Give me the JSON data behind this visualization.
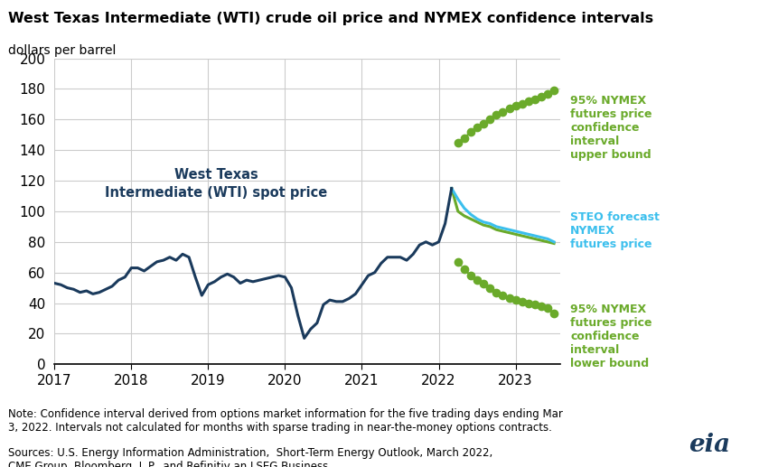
{
  "title": "West Texas Intermediate (WTI) crude oil price and NYMEX confidence intervals",
  "subtitle": "dollars per barrel",
  "note": "Note: Confidence interval derived from options market information for the five trading days ending Mar\n3, 2022. Intervals not calculated for months with sparse trading in near-the-money options contracts.",
  "sources": "Sources: U.S. Energy Information Administration,  Short-Term Energy Outlook, March 2022,\nCME Group, Bloomberg, L.P., and Refinitiv an LSEG Business",
  "wti_color": "#1a3a5c",
  "steo_color": "#3bbfed",
  "ci_color": "#6aaa2a",
  "ylim": [
    0,
    200
  ],
  "yticks": [
    0,
    20,
    40,
    60,
    80,
    100,
    120,
    140,
    160,
    180,
    200
  ],
  "wti_label": "West Texas\nIntermediate (WTI) spot price",
  "upper_label": "95% NYMEX\nfutures price\nconfidence\ninterval\nupper bound",
  "steo_label": "STEO forecast\nNYMEX\nfutures price",
  "lower_label": "95% NYMEX\nfutures price\nconfidence\ninterval\nlower bound",
  "wti_x": [
    2017.0,
    2017.083,
    2017.167,
    2017.25,
    2017.333,
    2017.417,
    2017.5,
    2017.583,
    2017.667,
    2017.75,
    2017.833,
    2017.917,
    2018.0,
    2018.083,
    2018.167,
    2018.25,
    2018.333,
    2018.417,
    2018.5,
    2018.583,
    2018.667,
    2018.75,
    2018.833,
    2018.917,
    2019.0,
    2019.083,
    2019.167,
    2019.25,
    2019.333,
    2019.417,
    2019.5,
    2019.583,
    2019.667,
    2019.75,
    2019.833,
    2019.917,
    2020.0,
    2020.083,
    2020.167,
    2020.25,
    2020.333,
    2020.417,
    2020.5,
    2020.583,
    2020.667,
    2020.75,
    2020.833,
    2020.917,
    2021.0,
    2021.083,
    2021.167,
    2021.25,
    2021.333,
    2021.417,
    2021.5,
    2021.583,
    2021.667,
    2021.75,
    2021.833,
    2021.917,
    2022.0,
    2022.083,
    2022.167
  ],
  "wti_y": [
    53,
    52,
    50,
    49,
    47,
    48,
    46,
    47,
    49,
    51,
    55,
    57,
    63,
    63,
    61,
    64,
    67,
    68,
    70,
    68,
    72,
    70,
    57,
    45,
    52,
    54,
    57,
    59,
    57,
    53,
    55,
    54,
    55,
    56,
    57,
    58,
    57,
    50,
    32,
    17,
    23,
    27,
    39,
    42,
    41,
    41,
    43,
    46,
    52,
    58,
    60,
    66,
    70,
    70,
    70,
    68,
    72,
    78,
    80,
    78,
    80,
    92,
    115
  ],
  "steo_x": [
    2022.167,
    2022.25,
    2022.333,
    2022.417,
    2022.5,
    2022.583,
    2022.667,
    2022.75,
    2022.833,
    2022.917,
    2023.0,
    2023.083,
    2023.167,
    2023.25,
    2023.333,
    2023.417,
    2023.5
  ],
  "steo_y": [
    115,
    108,
    102,
    98,
    95,
    93,
    92,
    90,
    89,
    88,
    87,
    86,
    85,
    84,
    83,
    82,
    80
  ],
  "upper_x": [
    2022.25,
    2022.333,
    2022.417,
    2022.5,
    2022.583,
    2022.667,
    2022.75,
    2022.833,
    2022.917,
    2023.0,
    2023.083,
    2023.167,
    2023.25,
    2023.333,
    2023.417,
    2023.5
  ],
  "upper_y": [
    145,
    148,
    152,
    155,
    157,
    160,
    163,
    165,
    167,
    169,
    170,
    172,
    173,
    175,
    177,
    179
  ],
  "lower_x": [
    2022.25,
    2022.333,
    2022.417,
    2022.5,
    2022.583,
    2022.667,
    2022.75,
    2022.833,
    2022.917,
    2023.0,
    2023.083,
    2023.167,
    2023.25,
    2023.333,
    2023.417,
    2023.5
  ],
  "lower_y": [
    67,
    62,
    58,
    55,
    53,
    50,
    47,
    45,
    43,
    42,
    41,
    40,
    39,
    38,
    37,
    33
  ],
  "nymex_x": [
    2022.167,
    2022.25,
    2022.333,
    2022.417,
    2022.5,
    2022.583,
    2022.667,
    2022.75,
    2022.833,
    2022.917,
    2023.0,
    2023.083,
    2023.167,
    2023.25,
    2023.333,
    2023.417,
    2023.5
  ],
  "nymex_y": [
    115,
    100,
    97,
    95,
    93,
    91,
    90,
    88,
    87,
    86,
    85,
    84,
    83,
    82,
    81,
    80,
    79
  ],
  "xticks": [
    2017,
    2018,
    2019,
    2020,
    2021,
    2022,
    2023
  ],
  "xtick_labels": [
    "2017",
    "2018",
    "2019",
    "2020",
    "2021",
    "2022",
    "2023"
  ]
}
